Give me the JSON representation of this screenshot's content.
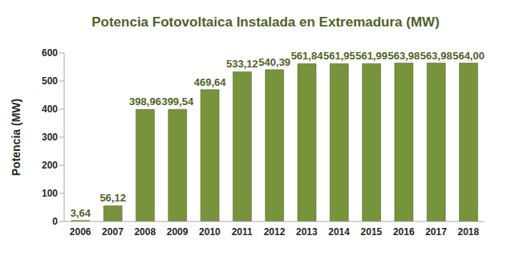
{
  "chart_data": {
    "type": "bar",
    "title": "Potencia Fotovoltaica Instalada en Extremadura (MW)",
    "y_label": "Potencia (MW)",
    "categories": [
      "2006",
      "2007",
      "2008",
      "2009",
      "2010",
      "2011",
      "2012",
      "2013",
      "2014",
      "2015",
      "2016",
      "2017",
      "2018"
    ],
    "values": [
      3.64,
      56.12,
      398.96,
      399.54,
      469.64,
      533.12,
      540.39,
      561.84,
      561.95,
      561.99,
      563.98,
      563.98,
      564.0
    ],
    "value_labels": [
      "3,64",
      "56,12",
      "398,96",
      "399,54",
      "469,64",
      "533,12",
      "540,39",
      "561,84",
      "561,95",
      "561,99",
      "563,98",
      "563,98",
      "564,00"
    ],
    "color": "#77933c",
    "ylim": [
      0,
      600
    ],
    "yticks": [
      0,
      100,
      200,
      300,
      400,
      500,
      600
    ],
    "grid": false,
    "data_labels": true
  }
}
